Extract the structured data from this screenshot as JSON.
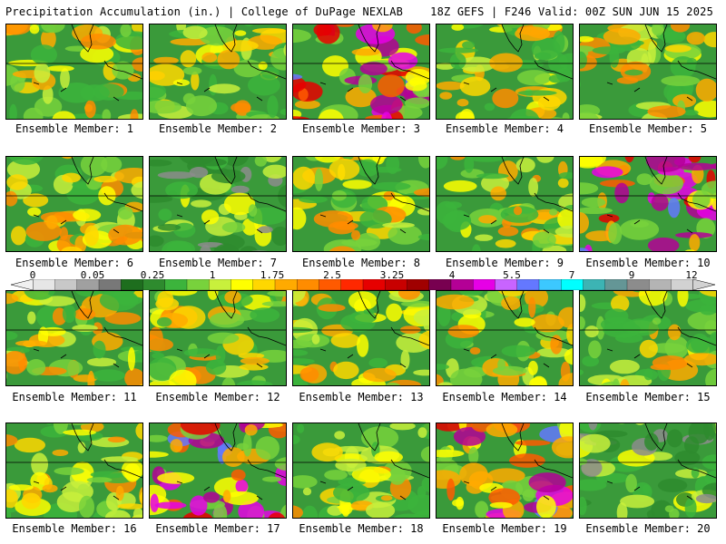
{
  "header": {
    "title": "Precipitation Accumulation (in.) | College of DuPage NEXLAB",
    "run_info": "18Z GEFS | F246 Valid: 00Z SUN JUN 15 2025"
  },
  "members": [
    {
      "label": "Ensemble Member: 1",
      "amount": "moderate"
    },
    {
      "label": "Ensemble Member: 2",
      "amount": "moderate"
    },
    {
      "label": "Ensemble Member: 3",
      "amount": "heavy"
    },
    {
      "label": "Ensemble Member: 4",
      "amount": "moderate"
    },
    {
      "label": "Ensemble Member: 5",
      "amount": "moderate"
    },
    {
      "label": "Ensemble Member: 6",
      "amount": "moderate"
    },
    {
      "label": "Ensemble Member: 7",
      "amount": "light"
    },
    {
      "label": "Ensemble Member: 8",
      "amount": "moderate"
    },
    {
      "label": "Ensemble Member: 9",
      "amount": "moderate"
    },
    {
      "label": "Ensemble Member: 10",
      "amount": "heavy"
    },
    {
      "label": "Ensemble Member: 11",
      "amount": "moderate"
    },
    {
      "label": "Ensemble Member: 12",
      "amount": "moderate"
    },
    {
      "label": "Ensemble Member: 13",
      "amount": "moderate"
    },
    {
      "label": "Ensemble Member: 14",
      "amount": "moderate"
    },
    {
      "label": "Ensemble Member: 15",
      "amount": "moderate"
    },
    {
      "label": "Ensemble Member: 16",
      "amount": "moderate"
    },
    {
      "label": "Ensemble Member: 17",
      "amount": "heavy"
    },
    {
      "label": "Ensemble Member: 18",
      "amount": "moderate"
    },
    {
      "label": "Ensemble Member: 19",
      "amount": "heavy"
    },
    {
      "label": "Ensemble Member: 20",
      "amount": "light"
    }
  ],
  "legend": {
    "labels": [
      "0",
      "0.05",
      "0.25",
      "1",
      "1.75",
      "2.5",
      "3.25",
      "4",
      "5.5",
      "7",
      "9",
      "12"
    ],
    "colors": [
      "#e6e6e6",
      "#c8c8c8",
      "#a0a0a0",
      "#787878",
      "#1e6e1e",
      "#2e8b2e",
      "#3cb43c",
      "#78d23c",
      "#c8f03c",
      "#ffff00",
      "#ffd700",
      "#ffaa00",
      "#ff8c00",
      "#ff5a00",
      "#ff2800",
      "#e60000",
      "#c80000",
      "#a00000",
      "#780050",
      "#b40096",
      "#e600e6",
      "#c864ff",
      "#6478ff",
      "#3cc8ff",
      "#00ffff",
      "#3cb4b4",
      "#649696",
      "#8c8c8c",
      "#b4b4b4",
      "#d2d2d2"
    ]
  }
}
